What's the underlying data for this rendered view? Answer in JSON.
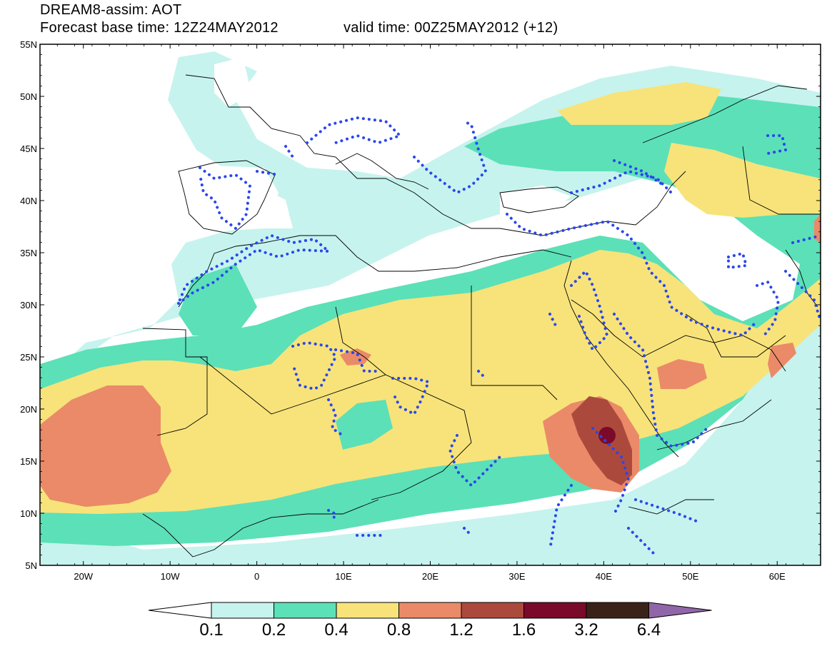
{
  "header": {
    "line1": "DREAM8-assim: AOT",
    "line2_base": "Forecast base time: 12Z24MAY2012",
    "line2_valid": "valid time: 00Z25MAY2012 (+12)"
  },
  "map": {
    "lon_range": [
      -25,
      65
    ],
    "lat_range": [
      5,
      55
    ],
    "lat_labels": [
      "55N",
      "50N",
      "45N",
      "40N",
      "35N",
      "30N",
      "25N",
      "20N",
      "15N",
      "10N",
      "5N"
    ],
    "lon_labels": [
      "20W",
      "10W",
      "0",
      "10E",
      "20E",
      "30E",
      "40E",
      "50E",
      "60E"
    ]
  },
  "colorbar": {
    "labels": [
      "0.1",
      "0.2",
      "0.4",
      "0.8",
      "1.2",
      "1.6",
      "3.2",
      "6.4"
    ],
    "colors": [
      "#ffffff",
      "#c6f3ee",
      "#5ce0b8",
      "#f7e37a",
      "#ea8a68",
      "#ab4a3c",
      "#7b0a2a",
      "#3b2218",
      "#9066a8"
    ]
  }
}
